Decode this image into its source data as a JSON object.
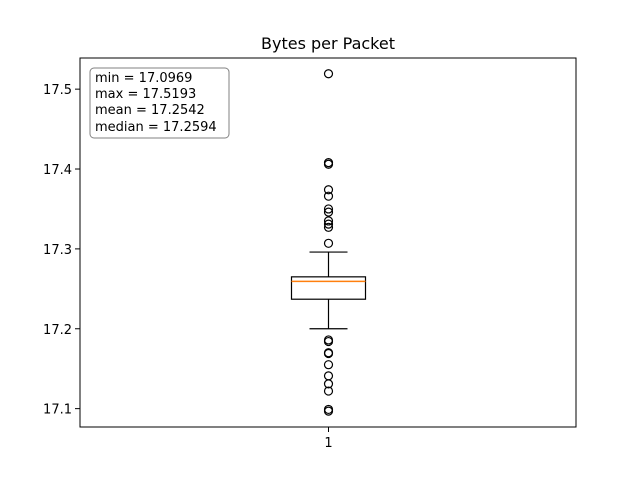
{
  "chart_data": {
    "type": "box",
    "title": "Bytes per Packet",
    "xlabel": "",
    "ylabel": "",
    "categories": [
      "1"
    ],
    "ylim": [
      17.077,
      17.539
    ],
    "yticks": [
      17.1,
      17.2,
      17.3,
      17.4,
      17.5
    ],
    "ytick_labels": [
      "17.1",
      "17.2",
      "17.3",
      "17.4",
      "17.5"
    ],
    "grid": false,
    "box": {
      "category": "1",
      "q1": 17.237,
      "median": 17.2594,
      "q3": 17.265,
      "whisker_low": 17.2,
      "whisker_high": 17.296,
      "outliers_high": [
        17.5193,
        17.408,
        17.406,
        17.374,
        17.366,
        17.35,
        17.346,
        17.335,
        17.331,
        17.327,
        17.307
      ],
      "outliers_low": [
        17.186,
        17.184,
        17.17,
        17.169,
        17.155,
        17.141,
        17.131,
        17.122,
        17.099,
        17.0969
      ]
    },
    "stats_box": {
      "location": "top-left",
      "lines": [
        "min = 17.0969",
        "max = 17.5193",
        "mean = 17.2542",
        "median = 17.2594"
      ]
    },
    "colors": {
      "box": "#000000",
      "median": "#ff7f0e",
      "outlier": "#000000",
      "stats_border": "#808080"
    }
  }
}
